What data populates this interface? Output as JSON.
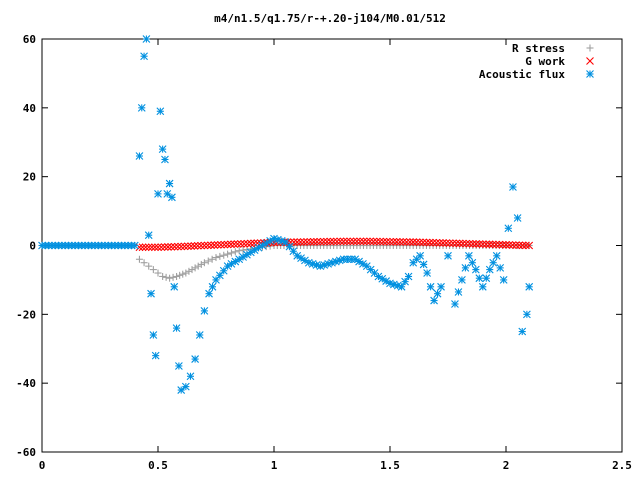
{
  "chart_data": {
    "type": "scatter",
    "title": "m4/n1.5/q1.75/r-+.20-j104/M0.01/512",
    "xlabel": "",
    "ylabel": "",
    "xlim": [
      0,
      2.5
    ],
    "ylim": [
      -60,
      60
    ],
    "x_ticks": [
      0,
      0.5,
      1,
      1.5,
      2,
      2.5
    ],
    "x_tick_labels": [
      "0",
      "0.5",
      "1",
      "1.5",
      "2",
      "2.5"
    ],
    "y_ticks": [
      -60,
      -40,
      -20,
      0,
      20,
      40,
      60
    ],
    "y_tick_labels": [
      "-60",
      "-40",
      "-20",
      "0",
      "20",
      "40",
      "60"
    ],
    "grid": false,
    "legend_position": "top-right",
    "series": [
      {
        "name": "R stress",
        "marker": "plus",
        "color": "#a0a0a0",
        "x": [
          0.0,
          0.1,
          0.2,
          0.3,
          0.4,
          0.42,
          0.44,
          0.46,
          0.48,
          0.5,
          0.52,
          0.55,
          0.58,
          0.62,
          0.66,
          0.7,
          0.75,
          0.8,
          0.85,
          0.9,
          0.95,
          1.0,
          1.1,
          1.2,
          1.3,
          1.4,
          1.5,
          1.6,
          1.7,
          1.8,
          1.9,
          2.0,
          2.05,
          2.1
        ],
        "y": [
          0,
          0,
          0,
          0,
          0,
          -4,
          -5,
          -6,
          -7,
          -8,
          -9,
          -9.5,
          -9,
          -8,
          -6.5,
          -5,
          -3.5,
          -2.5,
          -1.5,
          -1,
          -0.5,
          0,
          0,
          0,
          0,
          0,
          0,
          0,
          0,
          0,
          0,
          0,
          0,
          0
        ]
      },
      {
        "name": "G work",
        "marker": "cross",
        "color": "#ff0000",
        "x": [
          0.42,
          0.5,
          0.6,
          0.7,
          0.8,
          0.9,
          1.0,
          1.1,
          1.2,
          1.3,
          1.4,
          1.5,
          1.6,
          1.7,
          1.8,
          1.9,
          2.0,
          2.1
        ],
        "y": [
          -0.5,
          -0.5,
          -0.3,
          0,
          0.3,
          0.6,
          0.9,
          1.0,
          1.1,
          1.2,
          1.2,
          1.1,
          1.0,
          0.8,
          0.6,
          0.4,
          0.2,
          0
        ]
      },
      {
        "name": "Acoustic flux",
        "marker": "star",
        "color": "#0090e0",
        "x": [
          0.0,
          0.1,
          0.2,
          0.3,
          0.4,
          0.42,
          0.43,
          0.44,
          0.45,
          0.46,
          0.47,
          0.48,
          0.49,
          0.5,
          0.51,
          0.52,
          0.53,
          0.54,
          0.55,
          0.56,
          0.57,
          0.58,
          0.59,
          0.6,
          0.62,
          0.64,
          0.66,
          0.68,
          0.7,
          0.72,
          0.75,
          0.8,
          0.85,
          0.9,
          0.95,
          1.0,
          1.05,
          1.1,
          1.15,
          1.2,
          1.25,
          1.3,
          1.35,
          1.4,
          1.45,
          1.5,
          1.55,
          1.58,
          1.6,
          1.63,
          1.66,
          1.69,
          1.72,
          1.75,
          1.78,
          1.81,
          1.84,
          1.87,
          1.9,
          1.93,
          1.96,
          1.99,
          2.01,
          2.03,
          2.05,
          2.07,
          2.09,
          2.1
        ],
        "y": [
          0,
          0,
          0,
          0,
          0,
          26,
          40,
          55,
          60,
          3,
          -14,
          -26,
          -32,
          15,
          39,
          28,
          25,
          15,
          18,
          14,
          -12,
          -24,
          -35,
          -42,
          -41,
          -38,
          -33,
          -26,
          -19,
          -14,
          -10,
          -6,
          -4,
          -2,
          0,
          2,
          1,
          -3,
          -5,
          -6,
          -5,
          -4,
          -4,
          -6,
          -9,
          -11,
          -12,
          -9,
          -5,
          -3,
          -8,
          -16,
          -12,
          -3,
          -17,
          -10,
          -3,
          -7,
          -12,
          -7,
          -3,
          -10,
          5,
          17,
          8,
          -25,
          -20,
          -12
        ]
      }
    ]
  }
}
